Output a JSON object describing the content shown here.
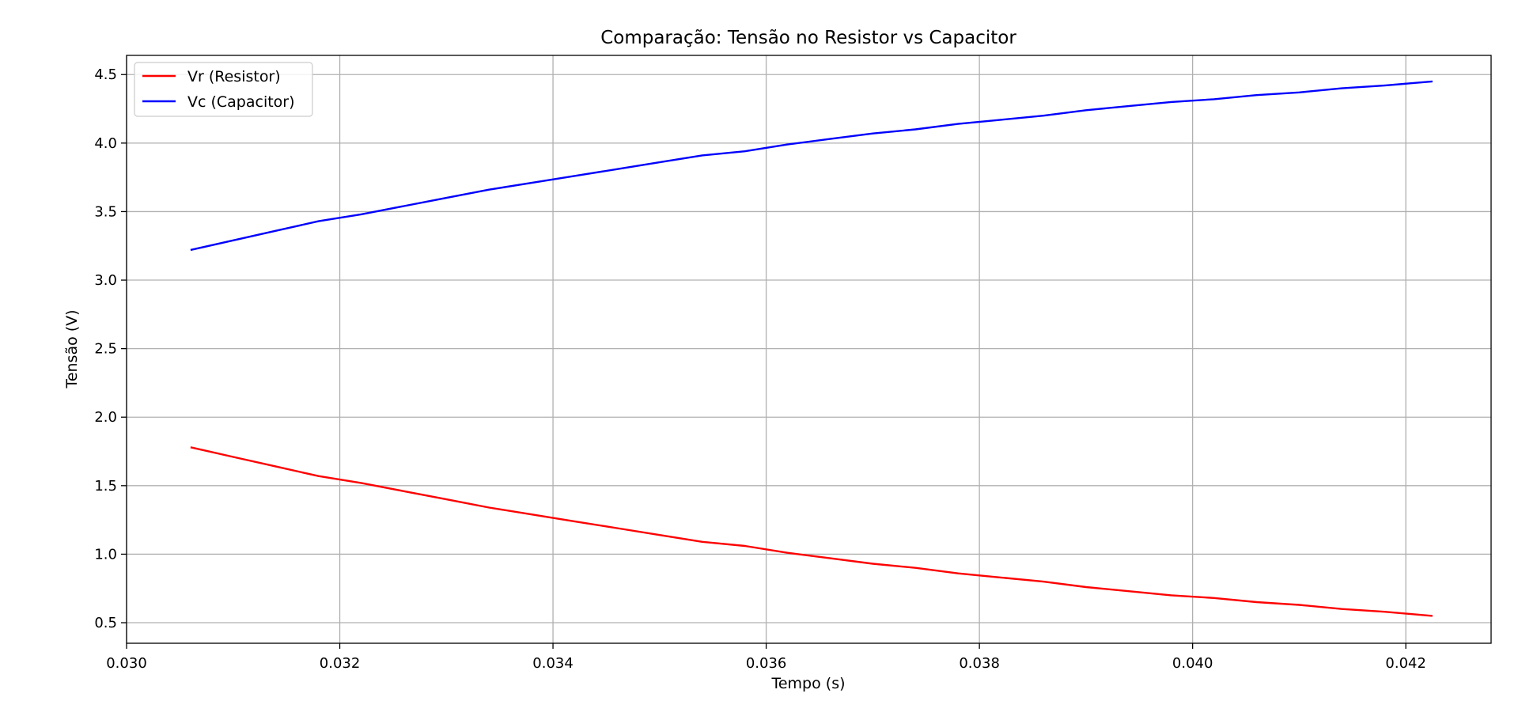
{
  "chart_data": {
    "type": "line",
    "title": "Comparação: Tensão no Resistor vs Capacitor",
    "xlabel": "Tempo (s)",
    "ylabel": "Tensão (V)",
    "xlim": [
      0.03,
      0.0428
    ],
    "ylim": [
      0.35,
      4.64
    ],
    "xticks": [
      0.03,
      0.032,
      0.034,
      0.036,
      0.038,
      0.04,
      0.042
    ],
    "xtick_labels": [
      "0.030",
      "0.032",
      "0.034",
      "0.036",
      "0.038",
      "0.040",
      "0.042"
    ],
    "yticks": [
      0.5,
      1.0,
      1.5,
      2.0,
      2.5,
      3.0,
      3.5,
      4.0,
      4.5
    ],
    "ytick_labels": [
      "0.5",
      "1.0",
      "1.5",
      "2.0",
      "2.5",
      "3.0",
      "3.5",
      "4.0",
      "4.5"
    ],
    "grid": true,
    "legend_position": "top-left",
    "series": [
      {
        "name": "Vr (Resistor)",
        "color": "#ff0000",
        "x": [
          0.0306,
          0.031,
          0.0314,
          0.0318,
          0.0322,
          0.0326,
          0.033,
          0.0334,
          0.0338,
          0.0342,
          0.0346,
          0.035,
          0.0354,
          0.0358,
          0.0362,
          0.0366,
          0.037,
          0.0374,
          0.0378,
          0.0382,
          0.0386,
          0.039,
          0.0394,
          0.0398,
          0.0402,
          0.0406,
          0.041,
          0.0414,
          0.0418,
          0.04225
        ],
        "y": [
          1.78,
          1.71,
          1.64,
          1.57,
          1.52,
          1.46,
          1.4,
          1.34,
          1.29,
          1.24,
          1.19,
          1.14,
          1.09,
          1.06,
          1.01,
          0.97,
          0.93,
          0.9,
          0.86,
          0.83,
          0.8,
          0.76,
          0.73,
          0.7,
          0.68,
          0.65,
          0.63,
          0.6,
          0.58,
          0.55
        ]
      },
      {
        "name": "Vc (Capacitor)",
        "color": "#0000ff",
        "x": [
          0.0306,
          0.031,
          0.0314,
          0.0318,
          0.0322,
          0.0326,
          0.033,
          0.0334,
          0.0338,
          0.0342,
          0.0346,
          0.035,
          0.0354,
          0.0358,
          0.0362,
          0.0366,
          0.037,
          0.0374,
          0.0378,
          0.0382,
          0.0386,
          0.039,
          0.0394,
          0.0398,
          0.0402,
          0.0406,
          0.041,
          0.0414,
          0.0418,
          0.04225
        ],
        "y": [
          3.22,
          3.29,
          3.36,
          3.43,
          3.48,
          3.54,
          3.6,
          3.66,
          3.71,
          3.76,
          3.81,
          3.86,
          3.91,
          3.94,
          3.99,
          4.03,
          4.07,
          4.1,
          4.14,
          4.17,
          4.2,
          4.24,
          4.27,
          4.3,
          4.32,
          4.35,
          4.37,
          4.4,
          4.42,
          4.45
        ]
      }
    ]
  }
}
